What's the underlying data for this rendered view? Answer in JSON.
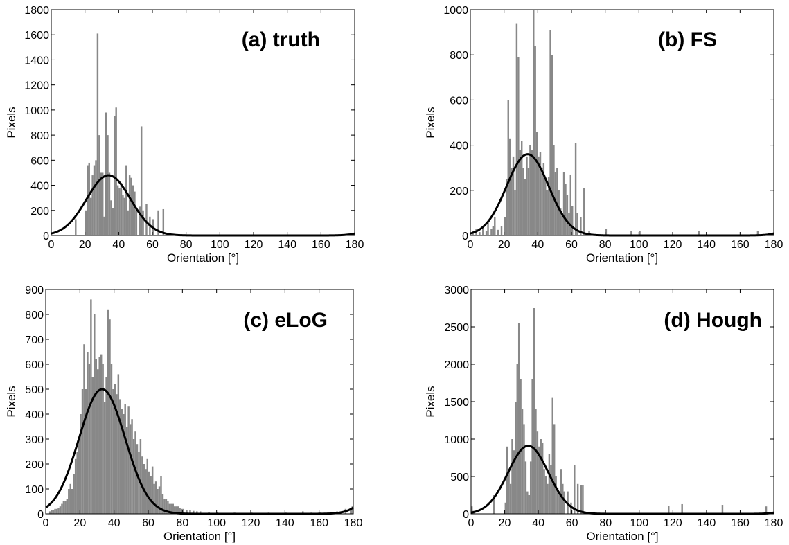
{
  "chart_data": [
    {
      "type": "bar",
      "title": "(a) truth",
      "xlabel": "Orientation [°]",
      "ylabel": "Pixels",
      "xlim": [
        0,
        180
      ],
      "ylim": [
        0,
        1800
      ],
      "xticks": [
        0,
        20,
        40,
        60,
        80,
        100,
        120,
        140,
        160,
        180
      ],
      "yticks": [
        0,
        200,
        400,
        600,
        800,
        1000,
        1200,
        1400,
        1600,
        1800
      ],
      "bar_color": "#888888",
      "curve_color": "#000000",
      "histogram": {
        "bin_width": 1,
        "bins": [
          [
            14,
            130
          ],
          [
            20,
            200
          ],
          [
            21,
            560
          ],
          [
            22,
            580
          ],
          [
            23,
            300
          ],
          [
            24,
            480
          ],
          [
            25,
            560
          ],
          [
            26,
            600
          ],
          [
            27,
            1610
          ],
          [
            28,
            800
          ],
          [
            29,
            500
          ],
          [
            30,
            500
          ],
          [
            31,
            150
          ],
          [
            32,
            980
          ],
          [
            33,
            800
          ],
          [
            34,
            500
          ],
          [
            35,
            280
          ],
          [
            36,
            220
          ],
          [
            37,
            950
          ],
          [
            38,
            1020
          ],
          [
            39,
            400
          ],
          [
            40,
            380
          ],
          [
            41,
            420
          ],
          [
            42,
            320
          ],
          [
            43,
            300
          ],
          [
            44,
            560
          ],
          [
            45,
            200
          ],
          [
            46,
            480
          ],
          [
            47,
            460
          ],
          [
            48,
            400
          ],
          [
            49,
            350
          ],
          [
            50,
            200
          ],
          [
            52,
            230
          ],
          [
            53,
            870
          ],
          [
            54,
            200
          ],
          [
            56,
            250
          ],
          [
            58,
            150
          ],
          [
            60,
            130
          ],
          [
            63,
            200
          ],
          [
            66,
            210
          ]
        ]
      },
      "curve": {
        "mean": 34,
        "peak": 480,
        "sigma": 13,
        "tail_end": 15
      }
    },
    {
      "type": "bar",
      "title": "(b) FS",
      "xlabel": "Orientation [°]",
      "ylabel": "Pixels",
      "xlim": [
        0,
        180
      ],
      "ylim": [
        0,
        1000
      ],
      "xticks": [
        0,
        20,
        40,
        60,
        80,
        100,
        120,
        140,
        160,
        180
      ],
      "yticks": [
        0,
        200,
        400,
        600,
        800,
        1000
      ],
      "bar_color": "#888888",
      "curve_color": "#000000",
      "histogram": {
        "bin_width": 1,
        "bins": [
          [
            1,
            20
          ],
          [
            3,
            30
          ],
          [
            5,
            15
          ],
          [
            7,
            40
          ],
          [
            9,
            20
          ],
          [
            10,
            60
          ],
          [
            12,
            30
          ],
          [
            13,
            40
          ],
          [
            14,
            80
          ],
          [
            16,
            25
          ],
          [
            18,
            40
          ],
          [
            20,
            80
          ],
          [
            21,
            250
          ],
          [
            22,
            600
          ],
          [
            23,
            430
          ],
          [
            24,
            300
          ],
          [
            25,
            350
          ],
          [
            26,
            200
          ],
          [
            27,
            940
          ],
          [
            28,
            790
          ],
          [
            29,
            380
          ],
          [
            30,
            420
          ],
          [
            31,
            300
          ],
          [
            32,
            250
          ],
          [
            33,
            350
          ],
          [
            34,
            300
          ],
          [
            35,
            400
          ],
          [
            36,
            380
          ],
          [
            37,
            1000
          ],
          [
            38,
            840
          ],
          [
            39,
            460
          ],
          [
            40,
            350
          ],
          [
            41,
            370
          ],
          [
            42,
            300
          ],
          [
            43,
            320
          ],
          [
            44,
            250
          ],
          [
            45,
            200
          ],
          [
            46,
            260
          ],
          [
            47,
            910
          ],
          [
            48,
            800
          ],
          [
            49,
            400
          ],
          [
            50,
            280
          ],
          [
            51,
            300
          ],
          [
            52,
            200
          ],
          [
            53,
            120
          ],
          [
            54,
            100
          ],
          [
            55,
            280
          ],
          [
            56,
            230
          ],
          [
            57,
            180
          ],
          [
            58,
            100
          ],
          [
            59,
            270
          ],
          [
            60,
            130
          ],
          [
            62,
            410
          ],
          [
            63,
            100
          ],
          [
            65,
            80
          ],
          [
            67,
            210
          ],
          [
            70,
            20
          ],
          [
            80,
            30
          ],
          [
            95,
            20
          ],
          [
            100,
            20
          ],
          [
            135,
            20
          ],
          [
            170,
            20
          ]
        ]
      },
      "curve": {
        "mean": 34,
        "peak": 360,
        "sigma": 12.5,
        "tail_end": 20
      }
    },
    {
      "type": "bar",
      "title": "(c) eLoG",
      "xlabel": "Orientation [°]",
      "ylabel": "Pixels",
      "xlim": [
        0,
        180
      ],
      "ylim": [
        0,
        900
      ],
      "xticks": [
        0,
        20,
        40,
        60,
        80,
        100,
        120,
        140,
        160,
        180
      ],
      "yticks": [
        0,
        100,
        200,
        300,
        400,
        500,
        600,
        700,
        800,
        900
      ],
      "bar_color": "#888888",
      "curve_color": "#000000",
      "histogram": {
        "bin_width": 1,
        "bins": [
          [
            2,
            10
          ],
          [
            3,
            15
          ],
          [
            4,
            15
          ],
          [
            5,
            20
          ],
          [
            6,
            20
          ],
          [
            7,
            25
          ],
          [
            8,
            30
          ],
          [
            9,
            40
          ],
          [
            10,
            50
          ],
          [
            11,
            50
          ],
          [
            12,
            60
          ],
          [
            13,
            100
          ],
          [
            14,
            120
          ],
          [
            15,
            100
          ],
          [
            16,
            160
          ],
          [
            17,
            220
          ],
          [
            18,
            250
          ],
          [
            19,
            300
          ],
          [
            20,
            400
          ],
          [
            21,
            500
          ],
          [
            22,
            680
          ],
          [
            23,
            500
          ],
          [
            24,
            650
          ],
          [
            25,
            600
          ],
          [
            26,
            860
          ],
          [
            27,
            550
          ],
          [
            28,
            800
          ],
          [
            29,
            620
          ],
          [
            30,
            580
          ],
          [
            31,
            630
          ],
          [
            32,
            640
          ],
          [
            33,
            600
          ],
          [
            34,
            450
          ],
          [
            35,
            550
          ],
          [
            36,
            820
          ],
          [
            37,
            780
          ],
          [
            38,
            600
          ],
          [
            39,
            500
          ],
          [
            40,
            520
          ],
          [
            41,
            480
          ],
          [
            42,
            560
          ],
          [
            43,
            460
          ],
          [
            44,
            420
          ],
          [
            45,
            400
          ],
          [
            46,
            440
          ],
          [
            47,
            350
          ],
          [
            48,
            430
          ],
          [
            49,
            360
          ],
          [
            50,
            380
          ],
          [
            51,
            300
          ],
          [
            52,
            330
          ],
          [
            53,
            280
          ],
          [
            54,
            250
          ],
          [
            55,
            300
          ],
          [
            56,
            230
          ],
          [
            57,
            200
          ],
          [
            58,
            180
          ],
          [
            59,
            220
          ],
          [
            60,
            170
          ],
          [
            61,
            150
          ],
          [
            62,
            190
          ],
          [
            63,
            120
          ],
          [
            64,
            130
          ],
          [
            65,
            100
          ],
          [
            66,
            110
          ],
          [
            67,
            150
          ],
          [
            68,
            80
          ],
          [
            69,
            60
          ],
          [
            70,
            60
          ],
          [
            71,
            50
          ],
          [
            72,
            40
          ],
          [
            73,
            40
          ],
          [
            74,
            40
          ],
          [
            75,
            30
          ],
          [
            76,
            30
          ],
          [
            77,
            30
          ],
          [
            78,
            25
          ],
          [
            79,
            20
          ],
          [
            80,
            20
          ],
          [
            82,
            15
          ],
          [
            84,
            15
          ],
          [
            86,
            12
          ],
          [
            88,
            10
          ],
          [
            90,
            10
          ],
          [
            95,
            8
          ],
          [
            100,
            8
          ],
          [
            110,
            5
          ],
          [
            120,
            5
          ],
          [
            130,
            5
          ],
          [
            140,
            5
          ],
          [
            150,
            10
          ],
          [
            155,
            5
          ],
          [
            160,
            5
          ],
          [
            170,
            10
          ],
          [
            175,
            20
          ],
          [
            178,
            25
          ],
          [
            179,
            30
          ]
        ]
      },
      "curve": {
        "mean": 33,
        "peak": 500,
        "sigma": 13.5,
        "tail_end": 40
      }
    },
    {
      "type": "bar",
      "title": "(d) Hough",
      "xlabel": "Orientation [°]",
      "ylabel": "Pixels",
      "xlim": [
        0,
        180
      ],
      "ylim": [
        0,
        3000
      ],
      "xticks": [
        0,
        20,
        40,
        60,
        80,
        100,
        120,
        140,
        160,
        180
      ],
      "yticks": [
        0,
        500,
        1000,
        1500,
        2000,
        2500,
        3000
      ],
      "bar_color": "#888888",
      "curve_color": "#000000",
      "histogram": {
        "bin_width": 1,
        "bins": [
          [
            0,
            100
          ],
          [
            1,
            40
          ],
          [
            13,
            250
          ],
          [
            20,
            150
          ],
          [
            21,
            900
          ],
          [
            22,
            600
          ],
          [
            23,
            400
          ],
          [
            24,
            1000
          ],
          [
            25,
            850
          ],
          [
            26,
            1500
          ],
          [
            27,
            2000
          ],
          [
            28,
            2550
          ],
          [
            29,
            1800
          ],
          [
            30,
            1400
          ],
          [
            31,
            1200
          ],
          [
            32,
            700
          ],
          [
            33,
            300
          ],
          [
            34,
            250
          ],
          [
            35,
            700
          ],
          [
            36,
            1800
          ],
          [
            37,
            2750
          ],
          [
            38,
            1400
          ],
          [
            39,
            1100
          ],
          [
            40,
            900
          ],
          [
            41,
            1000
          ],
          [
            42,
            950
          ],
          [
            43,
            600
          ],
          [
            44,
            500
          ],
          [
            45,
            400
          ],
          [
            46,
            800
          ],
          [
            47,
            650
          ],
          [
            48,
            1550
          ],
          [
            49,
            1200
          ],
          [
            50,
            500
          ],
          [
            51,
            350
          ],
          [
            52,
            300
          ],
          [
            53,
            600
          ],
          [
            54,
            400
          ],
          [
            55,
            300
          ],
          [
            57,
            300
          ],
          [
            59,
            150
          ],
          [
            61,
            650
          ],
          [
            63,
            400
          ],
          [
            65,
            380
          ],
          [
            66,
            380
          ],
          [
            117,
            110
          ],
          [
            125,
            130
          ],
          [
            149,
            120
          ],
          [
            175,
            100
          ]
        ]
      },
      "curve": {
        "mean": 34,
        "peak": 910,
        "sigma": 12,
        "tail_end": 45
      }
    }
  ]
}
